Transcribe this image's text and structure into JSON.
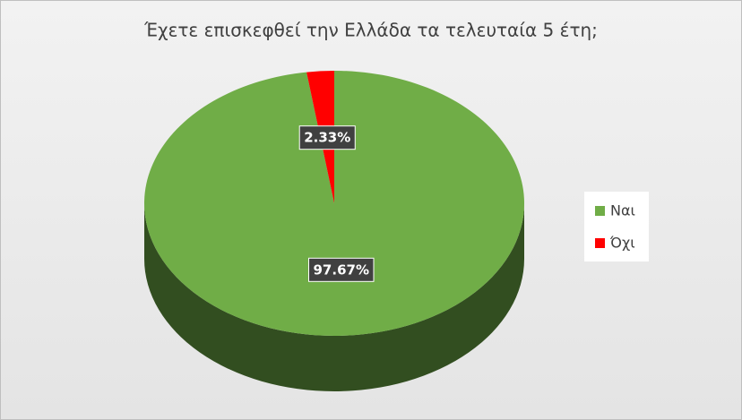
{
  "chart_data": {
    "type": "pie",
    "title": "Έχετε επισκεφθεί την Ελλάδα τα τελευταία 5 έτη;",
    "categories": [
      "Ναι",
      "Όχι"
    ],
    "values": [
      97.67,
      2.33
    ],
    "value_labels": [
      "97.67%",
      "2.33%"
    ],
    "colors": [
      "#70ad47",
      "#ff0000"
    ],
    "legend": "right"
  }
}
